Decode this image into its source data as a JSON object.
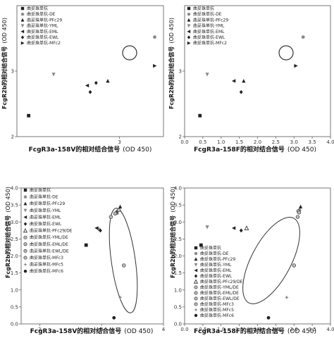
{
  "legend_items": [
    "曲妥珠单抗",
    "曲妥珠单抗-DE",
    "曲妥珠单抗-PFc29",
    "曲妥珠单抗-YML",
    "曲妥珠单抗-EML",
    "曲妥珠单抗-EWL",
    "曲妥珠单抗-PFc29/DE",
    "曲妥珠单抗-YML/DE",
    "曲妥珠单抗-EML/DE",
    "曲妥珠单抗-EWL/DE",
    "曲妥珠单抗-MFc3",
    "曲妥珠单抗-MFc5",
    "曲妥珠单抗-MFc6",
    "曲妥珠单抗-MFc2"
  ],
  "colors": {
    "axis": "#555555",
    "highlight": "#333333",
    "marker": "#222222",
    "gray_marker": "#888888"
  },
  "chart_data": [
    {
      "type": "scatter",
      "xlabel": "FcgR3a-158V的相对结合信号",
      "xlabel_unit": "(OD 450)",
      "ylabel": "FcgR2b的相对结合信号",
      "ylabel_unit": "(OD 450)",
      "xlim": [
        2.3,
        3.3
      ],
      "ylim": [
        2,
        4
      ],
      "xticks": [
        "2",
        "3"
      ],
      "yticks": [
        "2",
        "3"
      ],
      "legend": [
        0,
        1,
        2,
        3,
        4,
        5,
        13
      ],
      "highlight_series": 6,
      "points": [
        {
          "series": 0,
          "x": 2.38,
          "y": 2.32
        },
        {
          "series": 1,
          "x": 3.24,
          "y": 3.52
        },
        {
          "series": 2,
          "x": 2.92,
          "y": 2.85
        },
        {
          "series": 3,
          "x": 2.55,
          "y": 2.95
        },
        {
          "series": 4,
          "x": 2.78,
          "y": 2.78
        },
        {
          "series": 5,
          "x": 2.84,
          "y": 2.82
        },
        {
          "series": 5,
          "x": 2.8,
          "y": 2.68
        },
        {
          "series": 6,
          "x": 3.24,
          "y": 3.08
        }
      ]
    },
    {
      "type": "scatter",
      "xlabel": "FcgR3a-158F的相对结合信号",
      "xlabel_unit": "(OD 450)",
      "ylabel": "FcgR2b的相对结合信号",
      "ylabel_unit": "(OD 450)",
      "xlim": [
        0,
        4
      ],
      "ylim": [
        2,
        4
      ],
      "xticks": [
        "0.0",
        "0.5",
        "1.0",
        "1.5",
        "2.0",
        "2.5",
        "3.0",
        "3.5",
        "4.0"
      ],
      "yticks": [
        "2",
        "3"
      ],
      "legend": [
        0,
        1,
        2,
        3,
        4,
        5,
        13
      ],
      "highlight_series": 6,
      "points": [
        {
          "series": 0,
          "x": 0.42,
          "y": 2.32
        },
        {
          "series": 1,
          "x": 3.25,
          "y": 3.52
        },
        {
          "series": 2,
          "x": 1.62,
          "y": 2.85
        },
        {
          "series": 3,
          "x": 0.62,
          "y": 2.95
        },
        {
          "series": 4,
          "x": 1.35,
          "y": 2.85
        },
        {
          "series": 5,
          "x": 1.55,
          "y": 2.68
        },
        {
          "series": 6,
          "x": 3.05,
          "y": 3.08
        }
      ]
    },
    {
      "type": "scatter",
      "xlabel": "FcgR3a-158V的相对结合信号",
      "xlabel_unit": "(OD 450)",
      "ylabel": "FcgR2b的相对结合信号",
      "ylabel_unit": "(OD 450)",
      "xlim": [
        1.7,
        4.0
      ],
      "ylim": [
        0,
        4.0
      ],
      "xticks": [
        "2",
        "3",
        "4"
      ],
      "yticks": [
        "0.0",
        "0.5",
        "1.0",
        "1.5",
        "2.0",
        "2.5",
        "3.0",
        "3.5",
        "4.0"
      ],
      "legend": [
        0,
        1,
        2,
        3,
        4,
        5,
        6,
        7,
        8,
        9,
        10,
        11,
        12
      ],
      "points": [
        {
          "series": 0,
          "x": 2.75,
          "y": 2.32
        },
        {
          "series": 1,
          "x": 3.25,
          "y": 3.3
        },
        {
          "series": 2,
          "x": 3.3,
          "y": 3.45
        },
        {
          "series": 3,
          "x": 2.95,
          "y": 2.78
        },
        {
          "series": 4,
          "x": 2.92,
          "y": 2.82
        },
        {
          "series": 5,
          "x": 2.98,
          "y": 2.75
        },
        {
          "series": 6,
          "x": 3.24,
          "y": 3.28
        },
        {
          "series": 7,
          "x": 3.28,
          "y": 3.35
        },
        {
          "series": 8,
          "x": 3.22,
          "y": 3.25
        },
        {
          "series": 9,
          "x": 3.15,
          "y": 3.15
        },
        {
          "series": 10,
          "x": 3.36,
          "y": 1.72
        },
        {
          "series": 11,
          "x": 3.3,
          "y": 0.78
        },
        {
          "series": 12,
          "x": 3.2,
          "y": 0.18
        }
      ]
    },
    {
      "type": "scatter",
      "xlabel": "FcgR3a-158F的相对结合信号",
      "xlabel_unit": "(OD 450)",
      "ylabel": "FcgR2b的相对结合信号",
      "ylabel_unit": "(OD 450)",
      "xlim": [
        0,
        4
      ],
      "ylim": [
        0,
        4.0
      ],
      "xticks": [
        "0.0",
        "0.5",
        "1.0",
        "1.5",
        "2.0",
        "2.5",
        "3.0",
        "3.5",
        "4.0"
      ],
      "yticks": [
        "0.0",
        "0.5",
        "1.0",
        "1.5",
        "2.0",
        "2.5",
        "3.0",
        "3.5",
        "4.0"
      ],
      "legend": [
        0,
        1,
        2,
        3,
        4,
        5,
        6,
        7,
        8,
        9,
        10,
        11,
        12
      ],
      "points": [
        {
          "series": 0,
          "x": 0.45,
          "y": 2.32
        },
        {
          "series": 1,
          "x": 3.15,
          "y": 3.35
        },
        {
          "series": 2,
          "x": 3.18,
          "y": 3.45
        },
        {
          "series": 3,
          "x": 0.62,
          "y": 2.85
        },
        {
          "series": 4,
          "x": 1.35,
          "y": 2.82
        },
        {
          "series": 5,
          "x": 1.55,
          "y": 2.75
        },
        {
          "series": 6,
          "x": 1.7,
          "y": 2.82
        },
        {
          "series": 7,
          "x": 3.12,
          "y": 3.32
        },
        {
          "series": 8,
          "x": 3.14,
          "y": 3.28
        },
        {
          "series": 9,
          "x": 3.1,
          "y": 3.15
        },
        {
          "series": 10,
          "x": 3.0,
          "y": 1.72
        },
        {
          "series": 11,
          "x": 2.8,
          "y": 0.78
        },
        {
          "series": 12,
          "x": 2.3,
          "y": 0.18
        }
      ]
    }
  ]
}
